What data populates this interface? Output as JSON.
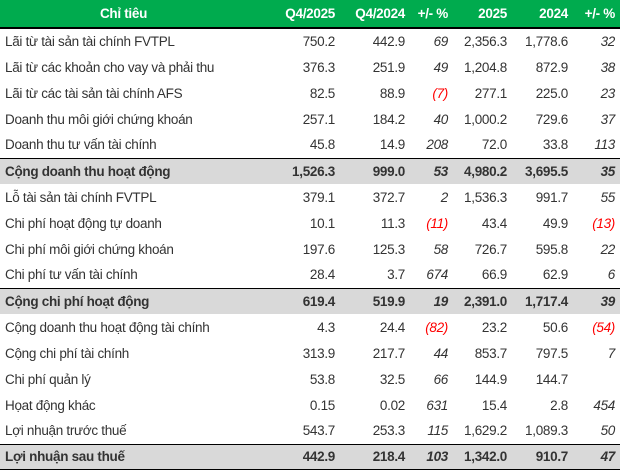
{
  "colors": {
    "header_bg": "#00AB4E",
    "header_text": "#FFFFFF",
    "total_row_bg": "#D9D9D9",
    "negative": "#FF0000",
    "body_text": "#333333"
  },
  "chart_data": {
    "type": "table",
    "title": "",
    "columns": [
      "Chỉ tiêu",
      "Q4/2025",
      "Q4/2024",
      "+/- %",
      "2025",
      "2024",
      "+/- %"
    ],
    "column_keys": [
      "q4-2025",
      "q4-2024",
      "chg-quarter-pct",
      "year-2025",
      "year-2024",
      "chg-year-pct"
    ],
    "rows": [
      {
        "label": "Lãi từ tài sản tài chính FVTPL",
        "values": [
          "750.2",
          "442.9",
          "69",
          "2,356.3",
          "1,778.6",
          "32"
        ],
        "total": false
      },
      {
        "label": "Lãi từ các khoản cho vay và phải thu",
        "values": [
          "376.3",
          "251.9",
          "49",
          "1,204.8",
          "872.9",
          "38"
        ],
        "total": false
      },
      {
        "label": "Lãi từ các tài sản tài chính AFS",
        "values": [
          "82.5",
          "88.9",
          "(7)",
          "277.1",
          "225.0",
          "23"
        ],
        "total": false
      },
      {
        "label": "Doanh thu môi giới chứng khoán",
        "values": [
          "257.1",
          "184.2",
          "40",
          "1,000.2",
          "729.6",
          "37"
        ],
        "total": false
      },
      {
        "label": "Doanh thu tư vấn tài chính",
        "values": [
          "45.8",
          "14.9",
          "208",
          "72.0",
          "33.8",
          "113"
        ],
        "total": false
      },
      {
        "label": "Cộng doanh thu hoạt động",
        "values": [
          "1,526.3",
          "999.0",
          "53",
          "4,980.2",
          "3,695.5",
          "35"
        ],
        "total": true
      },
      {
        "label": "Lỗ tài sản tài chính FVTPL",
        "values": [
          "379.1",
          "372.7",
          "2",
          "1,536.3",
          "991.7",
          "55"
        ],
        "total": false
      },
      {
        "label": "Chi phí hoạt động tự doanh",
        "values": [
          "10.1",
          "11.3",
          "(11)",
          "43.4",
          "49.9",
          "(13)"
        ],
        "total": false
      },
      {
        "label": "Chi phí môi giới chứng khoán",
        "values": [
          "197.6",
          "125.3",
          "58",
          "726.7",
          "595.8",
          "22"
        ],
        "total": false
      },
      {
        "label": "Chi phí tư vấn tài chính",
        "values": [
          "28.4",
          "3.7",
          "674",
          "66.9",
          "62.9",
          "6"
        ],
        "total": false
      },
      {
        "label": "Cộng chi phí hoạt động",
        "values": [
          "619.4",
          "519.9",
          "19",
          "2,391.0",
          "1,717.4",
          "39"
        ],
        "total": true
      },
      {
        "label": "Cộng doanh thu hoạt động tài chính",
        "values": [
          "4.3",
          "24.4",
          "(82)",
          "23.2",
          "50.6",
          "(54)"
        ],
        "total": false
      },
      {
        "label": "Cộng chi phí tài chính",
        "values": [
          "313.9",
          "217.7",
          "44",
          "853.7",
          "797.5",
          "7"
        ],
        "total": false
      },
      {
        "label": "Chi phí quản lý",
        "values": [
          "53.8",
          "32.5",
          "66",
          "144.9",
          "144.7",
          ""
        ],
        "total": false
      },
      {
        "label": "Họat động khác",
        "values": [
          "0.15",
          "0.02",
          "631",
          "15.4",
          "2.8",
          "454"
        ],
        "total": false
      },
      {
        "label": "Lợi nhuận trước thuế",
        "values": [
          "543.7",
          "253.3",
          "115",
          "1,629.2",
          "1,089.3",
          "50"
        ],
        "total": false
      },
      {
        "label": "Lợi nhuận sau thuế",
        "values": [
          "442.9",
          "218.4",
          "103",
          "1,342.0",
          "910.7",
          "47"
        ],
        "total": true
      }
    ]
  }
}
